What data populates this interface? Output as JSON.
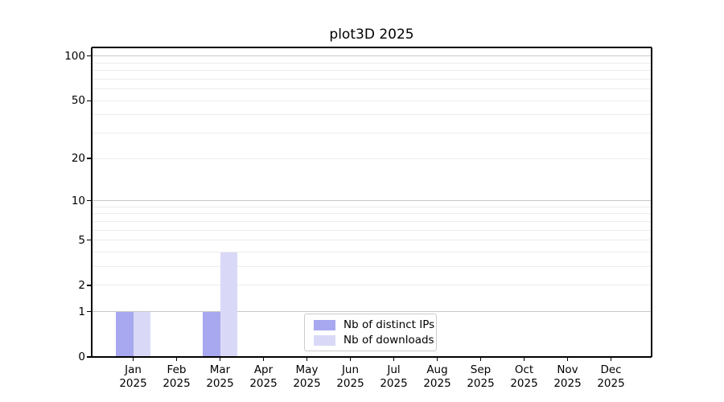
{
  "chart_data": {
    "type": "bar",
    "title": "plot3D 2025",
    "x_months": [
      "Jan",
      "Feb",
      "Mar",
      "Apr",
      "May",
      "Jun",
      "Jul",
      "Aug",
      "Sep",
      "Oct",
      "Nov",
      "Dec"
    ],
    "x_year_label": "2025",
    "series": [
      {
        "name": "Nb of distinct IPs",
        "color": "#a8a8f0",
        "values": [
          1,
          0,
          1,
          0,
          0,
          0,
          0,
          0,
          0,
          0,
          0,
          0
        ]
      },
      {
        "name": "Nb of downloads",
        "color": "#d9d9f7",
        "values": [
          1,
          0,
          4,
          0,
          0,
          0,
          0,
          0,
          0,
          0,
          0,
          0
        ]
      }
    ],
    "y_scale": "log10(1+v)",
    "ylim": [
      0,
      114
    ],
    "y_tick_labels": [
      0,
      1,
      2,
      5,
      10,
      20,
      50,
      100
    ],
    "grid_major": [
      1,
      10,
      100
    ],
    "grid_minor": [
      2,
      3,
      4,
      5,
      6,
      7,
      8,
      9,
      20,
      30,
      40,
      50,
      60,
      70,
      80,
      90
    ],
    "legend_position": "lower center",
    "legend_entries": [
      "Nb of distinct IPs",
      "Nb of downloads"
    ],
    "colors": {
      "grid_major": "#c8c8c8",
      "grid_minor": "#ececec",
      "spine": "#000000",
      "text": "#000000",
      "legend_border": "#cccccc",
      "legend_bg": "#ffffff"
    }
  }
}
